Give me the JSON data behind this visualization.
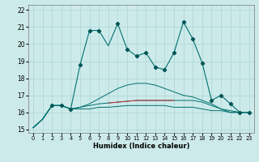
{
  "xlabel": "Humidex (Indice chaleur)",
  "xlim": [
    -0.5,
    23.5
  ],
  "ylim": [
    14.8,
    22.3
  ],
  "yticks": [
    15,
    16,
    17,
    18,
    19,
    20,
    21,
    22
  ],
  "xticks": [
    0,
    1,
    2,
    3,
    4,
    5,
    6,
    7,
    8,
    9,
    10,
    11,
    12,
    13,
    14,
    15,
    16,
    17,
    18,
    19,
    20,
    21,
    22,
    23
  ],
  "bg_color": "#cdeaea",
  "grid_color": "#aad4d4",
  "line_color": "#007070",
  "marker_color": "#005555",
  "main_x": [
    0,
    1,
    2,
    3,
    4,
    5,
    6,
    7,
    8,
    9,
    10,
    11,
    12,
    13,
    14,
    15,
    16,
    17,
    18,
    19,
    20,
    21,
    22,
    23
  ],
  "main_y": [
    15.1,
    15.6,
    16.4,
    16.4,
    16.2,
    18.8,
    20.8,
    20.8,
    19.9,
    21.2,
    19.7,
    19.3,
    19.5,
    18.65,
    18.5,
    19.5,
    21.3,
    20.3,
    18.9,
    16.7,
    17.0,
    16.5,
    16.0,
    16.0
  ],
  "curve1_x": [
    0,
    1,
    2,
    3,
    4,
    5,
    6,
    7,
    8,
    9,
    10,
    11,
    12,
    13,
    14,
    15,
    16,
    17,
    18,
    19,
    20,
    21,
    22,
    23
  ],
  "curve1_y": [
    15.1,
    15.6,
    16.4,
    16.4,
    16.2,
    16.3,
    16.5,
    16.8,
    17.1,
    17.4,
    17.6,
    17.7,
    17.7,
    17.6,
    17.4,
    17.2,
    17.0,
    16.9,
    16.7,
    16.5,
    16.2,
    16.0,
    16.0,
    16.0
  ],
  "curve2_x": [
    0,
    1,
    2,
    3,
    4,
    5,
    6,
    7,
    8,
    9,
    10,
    11,
    12,
    13,
    14,
    15,
    16,
    17,
    18,
    19,
    20,
    21,
    22,
    23
  ],
  "curve2_y": [
    15.1,
    15.6,
    16.4,
    16.4,
    16.2,
    16.3,
    16.4,
    16.5,
    16.55,
    16.6,
    16.65,
    16.7,
    16.7,
    16.7,
    16.7,
    16.7,
    16.7,
    16.7,
    16.6,
    16.4,
    16.2,
    16.1,
    16.0,
    16.0
  ],
  "curve3_x": [
    0,
    1,
    2,
    3,
    4,
    5,
    6,
    7,
    8,
    9,
    10,
    11,
    12,
    13,
    14,
    15,
    16,
    17,
    18,
    19,
    20,
    21,
    22,
    23
  ],
  "curve3_y": [
    15.1,
    15.6,
    16.4,
    16.4,
    16.2,
    16.2,
    16.2,
    16.3,
    16.3,
    16.35,
    16.4,
    16.4,
    16.4,
    16.4,
    16.4,
    16.3,
    16.3,
    16.3,
    16.2,
    16.1,
    16.1,
    16.0,
    16.0,
    16.0
  ],
  "red_x": [
    8,
    9,
    10,
    11,
    12,
    13,
    14,
    15
  ],
  "red_y": [
    16.55,
    16.6,
    16.65,
    16.7,
    16.7,
    16.7,
    16.7,
    16.7
  ],
  "marker_x": [
    2,
    3,
    4,
    5,
    6,
    7,
    9,
    10,
    11,
    12,
    13,
    14,
    15,
    16,
    17,
    18,
    19,
    20,
    21,
    22,
    23
  ],
  "marker_y": [
    16.4,
    16.4,
    16.2,
    18.8,
    20.8,
    20.8,
    21.2,
    19.7,
    19.3,
    19.5,
    18.65,
    18.5,
    19.5,
    21.3,
    20.3,
    18.9,
    16.7,
    17.0,
    16.5,
    16.0,
    16.0
  ]
}
